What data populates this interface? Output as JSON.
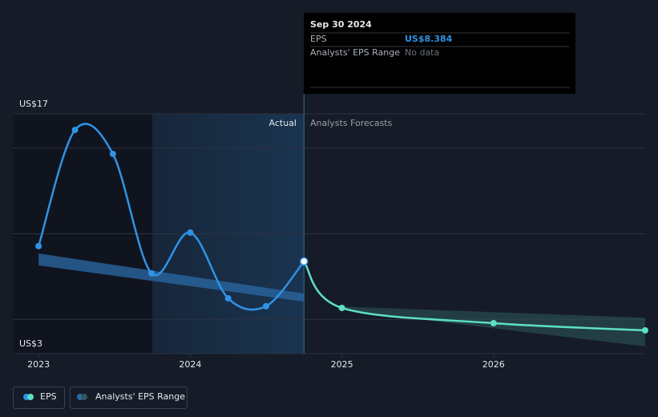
{
  "chart_data": {
    "type": "line",
    "tooltip": {
      "title": "Sep 30 2024",
      "rows": [
        {
          "label": "EPS",
          "value": "US$8.384"
        },
        {
          "label": "Analysts' EPS Range",
          "value": "No data"
        }
      ]
    },
    "annotations": [
      "Actual",
      "Analysts Forecasts"
    ],
    "forecast_from": 2024.75,
    "xlim": [
      2022.83,
      2027.0
    ],
    "xticks": [
      2023,
      2024,
      2025,
      2026
    ],
    "ylim": [
      3,
      17
    ],
    "yticks": [
      {
        "value": 17,
        "label": "US$17"
      },
      {
        "value": 3,
        "label": "US$3"
      }
    ],
    "gridlines": [
      5,
      10,
      15
    ],
    "series": [
      {
        "name": "EPS",
        "color": "#2e93e6",
        "forecast_color": "#5de0c8",
        "x": [
          2023.0,
          2023.24,
          2023.49,
          2023.745,
          2024.0,
          2024.25,
          2024.5,
          2024.75,
          2025.0,
          2026.0,
          2027.0
        ],
        "values": [
          9.28,
          16.06,
          14.66,
          7.69,
          10.07,
          6.23,
          5.77,
          8.384,
          5.67,
          4.78,
          4.36
        ]
      },
      {
        "name": "Analysts' EPS Range",
        "color": "#2b6aa6",
        "forecast_color": "#2f5a5c",
        "x": [
          2023.0,
          2024.75,
          2025.0,
          2027.0
        ],
        "low": [
          8.15,
          6.04,
          5.55,
          3.42
        ],
        "high": [
          8.85,
          6.51,
          5.75,
          5.1
        ]
      }
    ]
  }
}
